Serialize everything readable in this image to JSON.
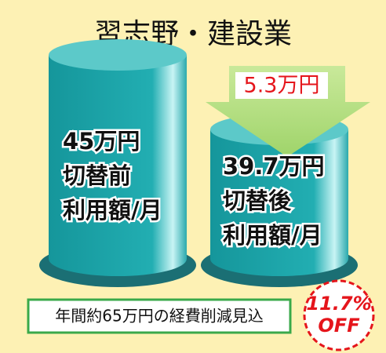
{
  "title": "習志野・建設業",
  "cylinders": [
    {
      "amount": "45万円",
      "label": "切替前",
      "unit": "利用額/月"
    },
    {
      "amount": "39.7万円",
      "label": "切替後",
      "unit": "利用額/月"
    }
  ],
  "arrow_label": "5.3万円",
  "footer": "年間約65万円の経費削減見込",
  "badge": {
    "percent": "11.7%",
    "text": "OFF"
  }
}
